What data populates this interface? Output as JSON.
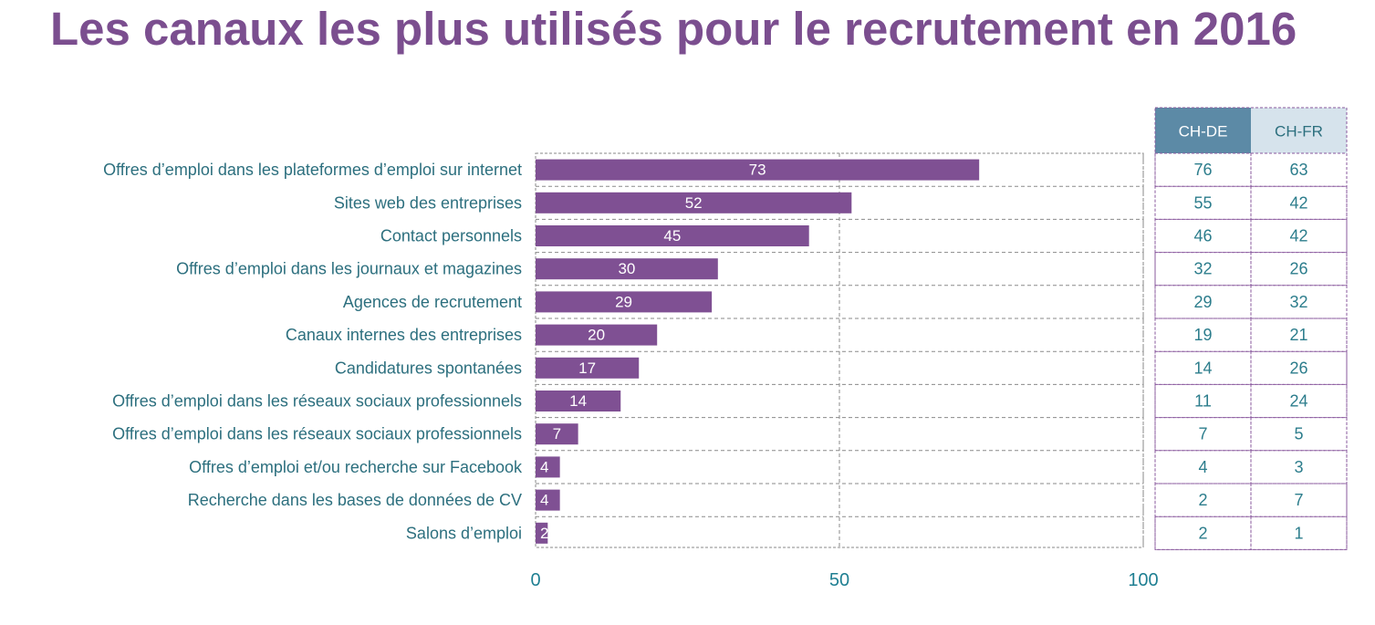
{
  "chart_data": {
    "type": "bar",
    "orientation": "horizontal",
    "title": "Les canaux les plus utilisés pour le recrutement en 2016",
    "categories": [
      "Offres d’emploi dans les plateformes d’emploi sur internet",
      "Sites web des entreprises",
      "Contact personnels",
      "Offres d’emploi dans les journaux et magazines",
      "Agences de recrutement",
      "Canaux internes des entreprises",
      "Candidatures spontanées",
      "Offres d’emploi dans les réseaux sociaux professionnels",
      "Offres d’emploi dans les réseaux sociaux professionnels",
      "Offres d’emploi et/ou recherche sur Facebook",
      "Recherche dans les bases de données de CV",
      "Salons d’emploi"
    ],
    "values": [
      73,
      52,
      45,
      30,
      29,
      20,
      17,
      14,
      7,
      4,
      4,
      2
    ],
    "xlim": [
      0,
      100
    ],
    "xticks": [
      "0",
      "50",
      "100"
    ],
    "grid": true,
    "bar_color": "#7f5093",
    "table": {
      "columns": [
        "CH-DE",
        "CH-FR"
      ],
      "rows": [
        [
          "76",
          "63"
        ],
        [
          "55",
          "42"
        ],
        [
          "46",
          "42"
        ],
        [
          "32",
          "26"
        ],
        [
          "29",
          "32"
        ],
        [
          "19",
          "21"
        ],
        [
          "14",
          "26"
        ],
        [
          "11",
          "24"
        ],
        [
          "7",
          "5"
        ],
        [
          "4",
          "3"
        ],
        [
          "2",
          "7"
        ],
        [
          "2",
          "1"
        ]
      ]
    }
  }
}
